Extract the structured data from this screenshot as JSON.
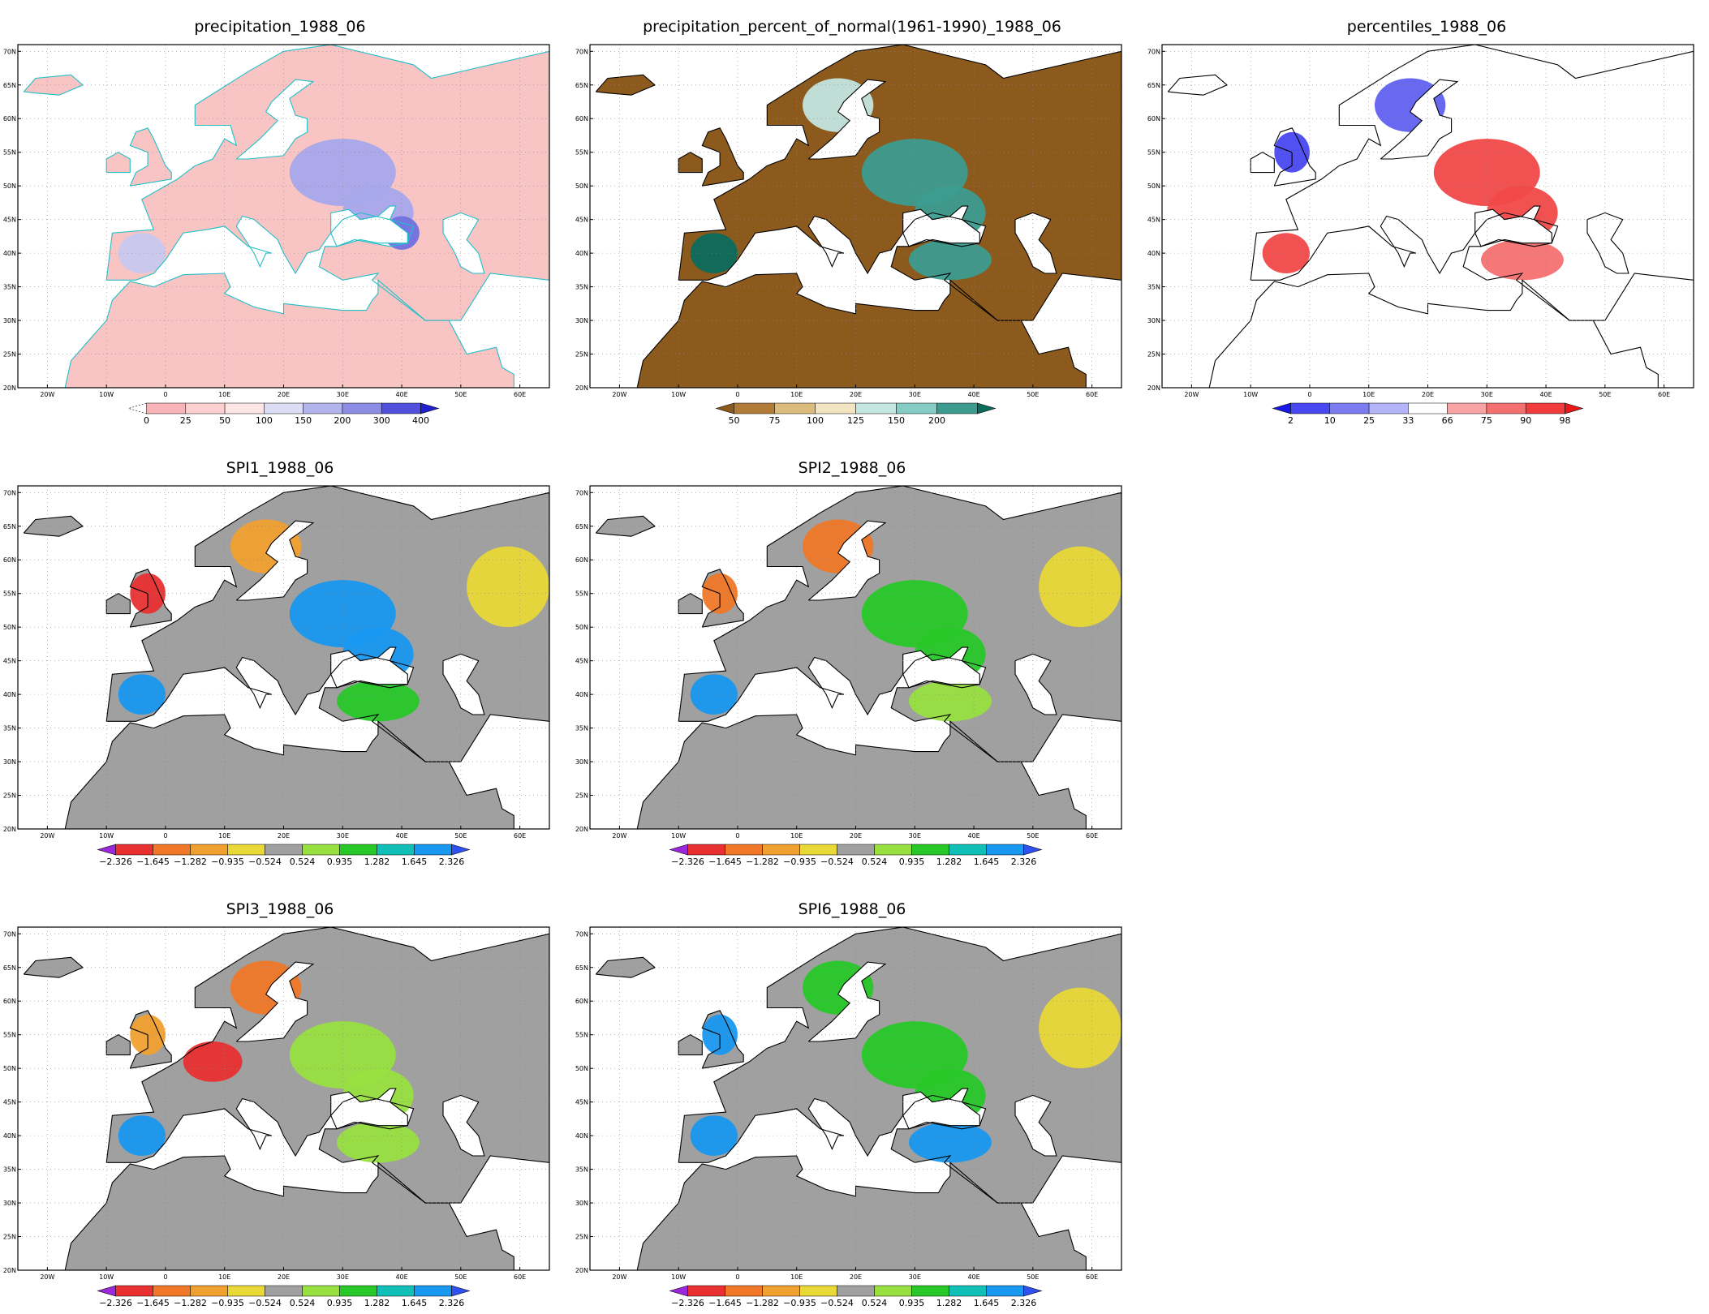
{
  "lat_labels": [
    "70N",
    "65N",
    "60N",
    "55N",
    "50N",
    "45N",
    "40N",
    "35N",
    "30N",
    "25N",
    "20N"
  ],
  "lon_labels": [
    "20W",
    "10W",
    "0",
    "10E",
    "20E",
    "30E",
    "40E",
    "50E",
    "60E"
  ],
  "panels": [
    {
      "title": "precipitation_1988_06",
      "coast_color": "#20c0c8",
      "fill": "#f8c4c4",
      "colorbar": {
        "labels": [
          "0",
          "25",
          "50",
          "100",
          "150",
          "200",
          "300",
          "400"
        ],
        "colors": [
          "#f4a0a8",
          "#f8b4b8",
          "#fcd0d0",
          "#ffe6e6",
          "#dcdcf4",
          "#b4b4ec",
          "#8c8ce4",
          "#5050dc",
          "#2020d0"
        ],
        "left_triangle": "none-dashed",
        "right_triangle": true
      },
      "blobs": [
        {
          "c": "#a8a8ec",
          "kind": "east-europe"
        },
        {
          "c": "#7070e0",
          "kind": "black-sea"
        },
        {
          "c": "#c8c8f0",
          "kind": "iberia"
        }
      ]
    },
    {
      "title": "precipitation_percent_of_normal(1961-1990)_1988_06",
      "coast_color": "#000000",
      "fill": "#8c5a1c",
      "colorbar": {
        "labels": [
          "50",
          "75",
          "100",
          "125",
          "150",
          "200"
        ],
        "colors": [
          "#8c5a1c",
          "#b07c38",
          "#dcbc7c",
          "#f2e4c0",
          "#c4e6e0",
          "#84ccc4",
          "#3c9c90",
          "#0c6c5c"
        ],
        "left_triangle": true,
        "right_triangle": true
      },
      "blobs": [
        {
          "c": "#3c9c90",
          "kind": "east-europe"
        },
        {
          "c": "#0c6c5c",
          "kind": "iberia"
        },
        {
          "c": "#c4e6e0",
          "kind": "scand"
        },
        {
          "c": "#3c9c90",
          "kind": "turkey"
        }
      ]
    },
    {
      "title": "percentiles_1988_06",
      "coast_color": "#000000",
      "fill": "#ffffff",
      "colorbar": {
        "labels": [
          "2",
          "10",
          "25",
          "33",
          "66",
          "75",
          "90",
          "98"
        ],
        "colors": [
          "#1818e8",
          "#4848f0",
          "#7c7cf0",
          "#b4b4f8",
          "#ffffff",
          "#f8a4a4",
          "#f47070",
          "#f03c3c",
          "#e81818"
        ],
        "left_triangle": true,
        "right_triangle": true
      },
      "blobs": [
        {
          "c": "#f04848",
          "kind": "east-europe"
        },
        {
          "c": "#f04848",
          "kind": "iberia"
        },
        {
          "c": "#4848f0",
          "kind": "uk"
        },
        {
          "c": "#6060f0",
          "kind": "scand"
        },
        {
          "c": "#f47070",
          "kind": "turkey"
        }
      ]
    },
    {
      "title": "SPI1_1988_06",
      "coast_color": "#000000",
      "fill": "#a0a0a0",
      "colorbar": {
        "labels": [
          "−2.326",
          "−1.645",
          "−1.282",
          "−0.935",
          "−0.524",
          "0.524",
          "0.935",
          "1.282",
          "1.645",
          "2.326"
        ],
        "colors": [
          "#9c28dc",
          "#e83030",
          "#f07828",
          "#f0a030",
          "#e8d838",
          "#a0a0a0",
          "#98e040",
          "#28c828",
          "#10c0b8",
          "#1898f0",
          "#3050f0"
        ],
        "left_triangle": true,
        "right_triangle": true
      },
      "blobs": [
        {
          "c": "#1898f0",
          "kind": "east-europe"
        },
        {
          "c": "#1898f0",
          "kind": "iberia"
        },
        {
          "c": "#f0a030",
          "kind": "scand"
        },
        {
          "c": "#e8d838",
          "kind": "russia"
        },
        {
          "c": "#28c828",
          "kind": "turkey"
        },
        {
          "c": "#e83030",
          "kind": "uk"
        }
      ]
    },
    {
      "title": "SPI2_1988_06",
      "coast_color": "#000000",
      "fill": "#a0a0a0",
      "colorbar": {
        "labels": [
          "−2.326",
          "−1.645",
          "−1.282",
          "−0.935",
          "−0.524",
          "0.524",
          "0.935",
          "1.282",
          "1.645",
          "2.326"
        ],
        "colors": [
          "#9c28dc",
          "#e83030",
          "#f07828",
          "#f0a030",
          "#e8d838",
          "#a0a0a0",
          "#98e040",
          "#28c828",
          "#10c0b8",
          "#1898f0",
          "#3050f0"
        ],
        "left_triangle": true,
        "right_triangle": true
      },
      "blobs": [
        {
          "c": "#28c828",
          "kind": "east-europe"
        },
        {
          "c": "#1898f0",
          "kind": "iberia"
        },
        {
          "c": "#f07828",
          "kind": "scand"
        },
        {
          "c": "#e8d838",
          "kind": "russia"
        },
        {
          "c": "#98e040",
          "kind": "turkey"
        },
        {
          "c": "#f07828",
          "kind": "uk"
        }
      ]
    },
    {
      "title": "SPI3_1988_06",
      "coast_color": "#000000",
      "fill": "#a0a0a0",
      "colorbar": {
        "labels": [
          "−2.326",
          "−1.645",
          "−1.282",
          "−0.935",
          "−0.524",
          "0.524",
          "0.935",
          "1.282",
          "1.645",
          "2.326"
        ],
        "colors": [
          "#9c28dc",
          "#e83030",
          "#f07828",
          "#f0a030",
          "#e8d838",
          "#a0a0a0",
          "#98e040",
          "#28c828",
          "#10c0b8",
          "#1898f0",
          "#3050f0"
        ],
        "left_triangle": true,
        "right_triangle": true
      },
      "blobs": [
        {
          "c": "#98e040",
          "kind": "east-europe"
        },
        {
          "c": "#1898f0",
          "kind": "iberia"
        },
        {
          "c": "#f07828",
          "kind": "scand"
        },
        {
          "c": "#e83030",
          "kind": "germany"
        },
        {
          "c": "#98e040",
          "kind": "turkey"
        },
        {
          "c": "#f0a030",
          "kind": "uk"
        }
      ]
    },
    {
      "title": "SPI6_1988_06",
      "coast_color": "#000000",
      "fill": "#a0a0a0",
      "colorbar": {
        "labels": [
          "−2.326",
          "−1.645",
          "−1.282",
          "−0.935",
          "−0.524",
          "0.524",
          "0.935",
          "1.282",
          "1.645",
          "2.326"
        ],
        "colors": [
          "#9c28dc",
          "#e83030",
          "#f07828",
          "#f0a030",
          "#e8d838",
          "#a0a0a0",
          "#98e040",
          "#28c828",
          "#10c0b8",
          "#1898f0",
          "#3050f0"
        ],
        "left_triangle": true,
        "right_triangle": true
      },
      "blobs": [
        {
          "c": "#28c828",
          "kind": "east-europe"
        },
        {
          "c": "#1898f0",
          "kind": "iberia"
        },
        {
          "c": "#28c828",
          "kind": "scand"
        },
        {
          "c": "#e8d838",
          "kind": "russia"
        },
        {
          "c": "#1898f0",
          "kind": "turkey"
        },
        {
          "c": "#1898f0",
          "kind": "uk"
        }
      ]
    }
  ]
}
